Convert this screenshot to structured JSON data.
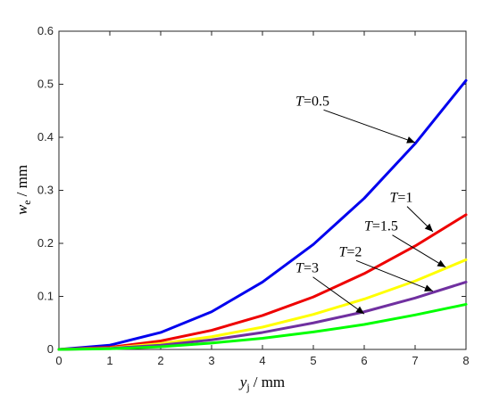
{
  "chart_data": {
    "type": "line",
    "xlim": [
      0,
      8
    ],
    "ylim": [
      0,
      0.6
    ],
    "x_ticks": [
      0,
      1,
      2,
      3,
      4,
      5,
      6,
      7,
      8
    ],
    "x_tick_labels": [
      "0",
      "1",
      "2",
      "3",
      "4",
      "5",
      "6",
      "7",
      "8"
    ],
    "y_ticks": [
      0,
      0.1,
      0.2,
      0.3,
      0.4,
      0.5,
      0.6
    ],
    "y_tick_labels": [
      "0",
      "0.1",
      "0.2",
      "0.3",
      "0.4",
      "0.5",
      "0.6"
    ],
    "xlabel": {
      "var": "y",
      "sub": "j",
      "unit": "/ mm"
    },
    "ylabel": {
      "var": "w",
      "sub": "e",
      "unit": "/ mm"
    },
    "grid": false,
    "series": [
      {
        "param": "T",
        "param_value": "=0.5",
        "color": "#0000ee",
        "x": [
          0,
          1,
          2,
          3,
          4,
          5,
          6,
          7,
          8
        ],
        "y": [
          0,
          0.008,
          0.032,
          0.071,
          0.127,
          0.198,
          0.285,
          0.388,
          0.507
        ],
        "annotation": {
          "text_x": 4.65,
          "text_y": 0.46,
          "arrow_to": [
            7.0,
            0.39
          ]
        }
      },
      {
        "param": "T",
        "param_value": "=1",
        "color": "#ee0000",
        "x": [
          0,
          1,
          2,
          3,
          4,
          5,
          6,
          7,
          8
        ],
        "y": [
          0,
          0.004,
          0.016,
          0.036,
          0.064,
          0.099,
          0.143,
          0.195,
          0.254
        ],
        "annotation": {
          "text_x": 6.5,
          "text_y": 0.278,
          "arrow_to": [
            7.35,
            0.222
          ]
        }
      },
      {
        "param": "T",
        "param_value": "=1.5",
        "color": "#ffff00",
        "x": [
          0,
          1,
          2,
          3,
          4,
          5,
          6,
          7,
          8
        ],
        "y": [
          0,
          0.0026,
          0.011,
          0.024,
          0.042,
          0.066,
          0.095,
          0.129,
          0.169
        ],
        "annotation": {
          "text_x": 6.0,
          "text_y": 0.224,
          "arrow_to": [
            7.6,
            0.155
          ]
        }
      },
      {
        "param": "T",
        "param_value": "=2",
        "color": "#7030a0",
        "x": [
          0,
          1,
          2,
          3,
          4,
          5,
          6,
          7,
          8
        ],
        "y": [
          0,
          0.002,
          0.008,
          0.018,
          0.032,
          0.05,
          0.071,
          0.097,
          0.127
        ],
        "annotation": {
          "text_x": 5.5,
          "text_y": 0.176,
          "arrow_to": [
            7.35,
            0.11
          ]
        }
      },
      {
        "param": "T",
        "param_value": "=3",
        "color": "#00ff00",
        "x": [
          0,
          1,
          2,
          3,
          4,
          5,
          6,
          7,
          8
        ],
        "y": [
          0,
          0.0013,
          0.005,
          0.012,
          0.021,
          0.033,
          0.047,
          0.065,
          0.085
        ],
        "annotation": {
          "text_x": 4.65,
          "text_y": 0.145,
          "arrow_to": [
            6.0,
            0.067
          ]
        }
      }
    ]
  }
}
